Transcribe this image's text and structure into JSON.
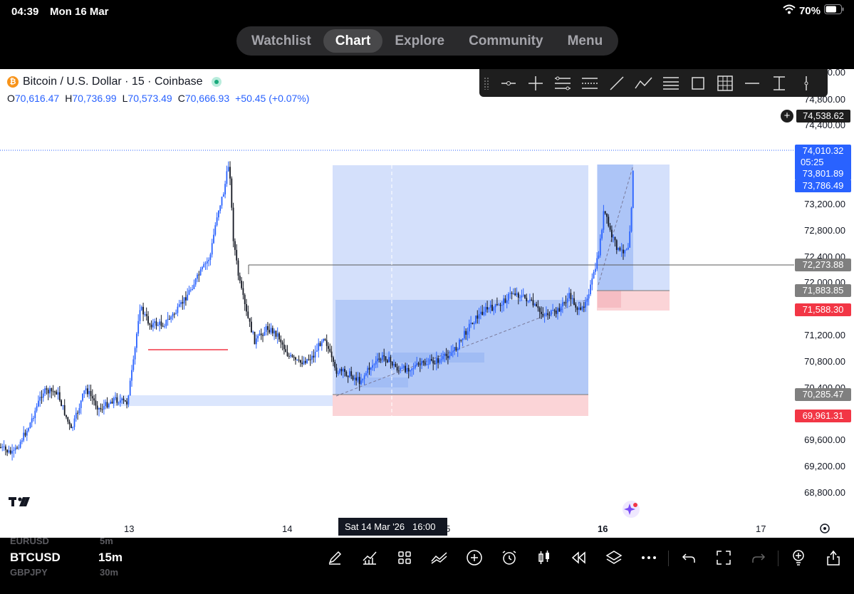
{
  "status_bar": {
    "time": "04:39",
    "date": "Mon 16 Mar",
    "battery": "70%"
  },
  "nav": {
    "tabs": [
      "Watchlist",
      "Chart",
      "Explore",
      "Community",
      "Menu"
    ],
    "active": "Chart"
  },
  "symbol": {
    "title": "Bitcoin / U.S. Dollar · 15 · Coinbase",
    "open_label": "O",
    "open": "70,616.47",
    "high_label": "H",
    "high": "70,736.99",
    "low_label": "L",
    "low": "70,573.49",
    "close_label": "C",
    "close": "70,666.93",
    "change": "+50.45 (+0.07%)"
  },
  "drawing_toolbar": {
    "icons": [
      "horizontal-ray-icon",
      "crosshair-line-icon",
      "parallel-channel-icon",
      "regression-channel-icon",
      "trend-line-icon",
      "path-icon",
      "fib-retracement-icon",
      "rectangle-icon",
      "grid-icon",
      "horizontal-line-icon",
      "price-range-icon",
      "vertical-line-icon"
    ]
  },
  "price_axis": {
    "labels": [
      "75,200.00",
      "74,800.00",
      "74,400.00",
      "73,200.00",
      "72,800.00",
      "72,400.00",
      "72,000.00",
      "71,200.00",
      "70,800.00",
      "70,400.00",
      "69,600.00",
      "69,200.00",
      "68,800.00"
    ],
    "tags": {
      "crosshair": "74,538.62",
      "last": "74,010.32",
      "countdown": "05:25",
      "target1": "73,801.89",
      "target2": "73,786.49",
      "level_mid": "72,273.88",
      "entry_right": "71,883.85",
      "stop_right": "71,588.30",
      "entry_left": "70,285.47",
      "stop_left": "69,961.31"
    }
  },
  "time_axis": {
    "labels": [
      "13",
      "14",
      "16",
      "17"
    ],
    "hidden_partial": "5",
    "cursor_date": "Sat 14 Mar '26",
    "cursor_time": "16:00"
  },
  "bottom_bar": {
    "watch_above": "EURUSD",
    "watch_above_tf": "5m",
    "symbol": "BTCUSD",
    "timeframe": "15m",
    "watch_below": "GBPJPY",
    "watch_below_tf": "30m"
  },
  "colors": {
    "accent": "#2962ff",
    "up_candle": "#2962ff",
    "down_candle": "#131722",
    "profit_zone": "#c9d8fb",
    "loss_zone": "#fbd0d4",
    "red_line": "#f23645"
  }
}
